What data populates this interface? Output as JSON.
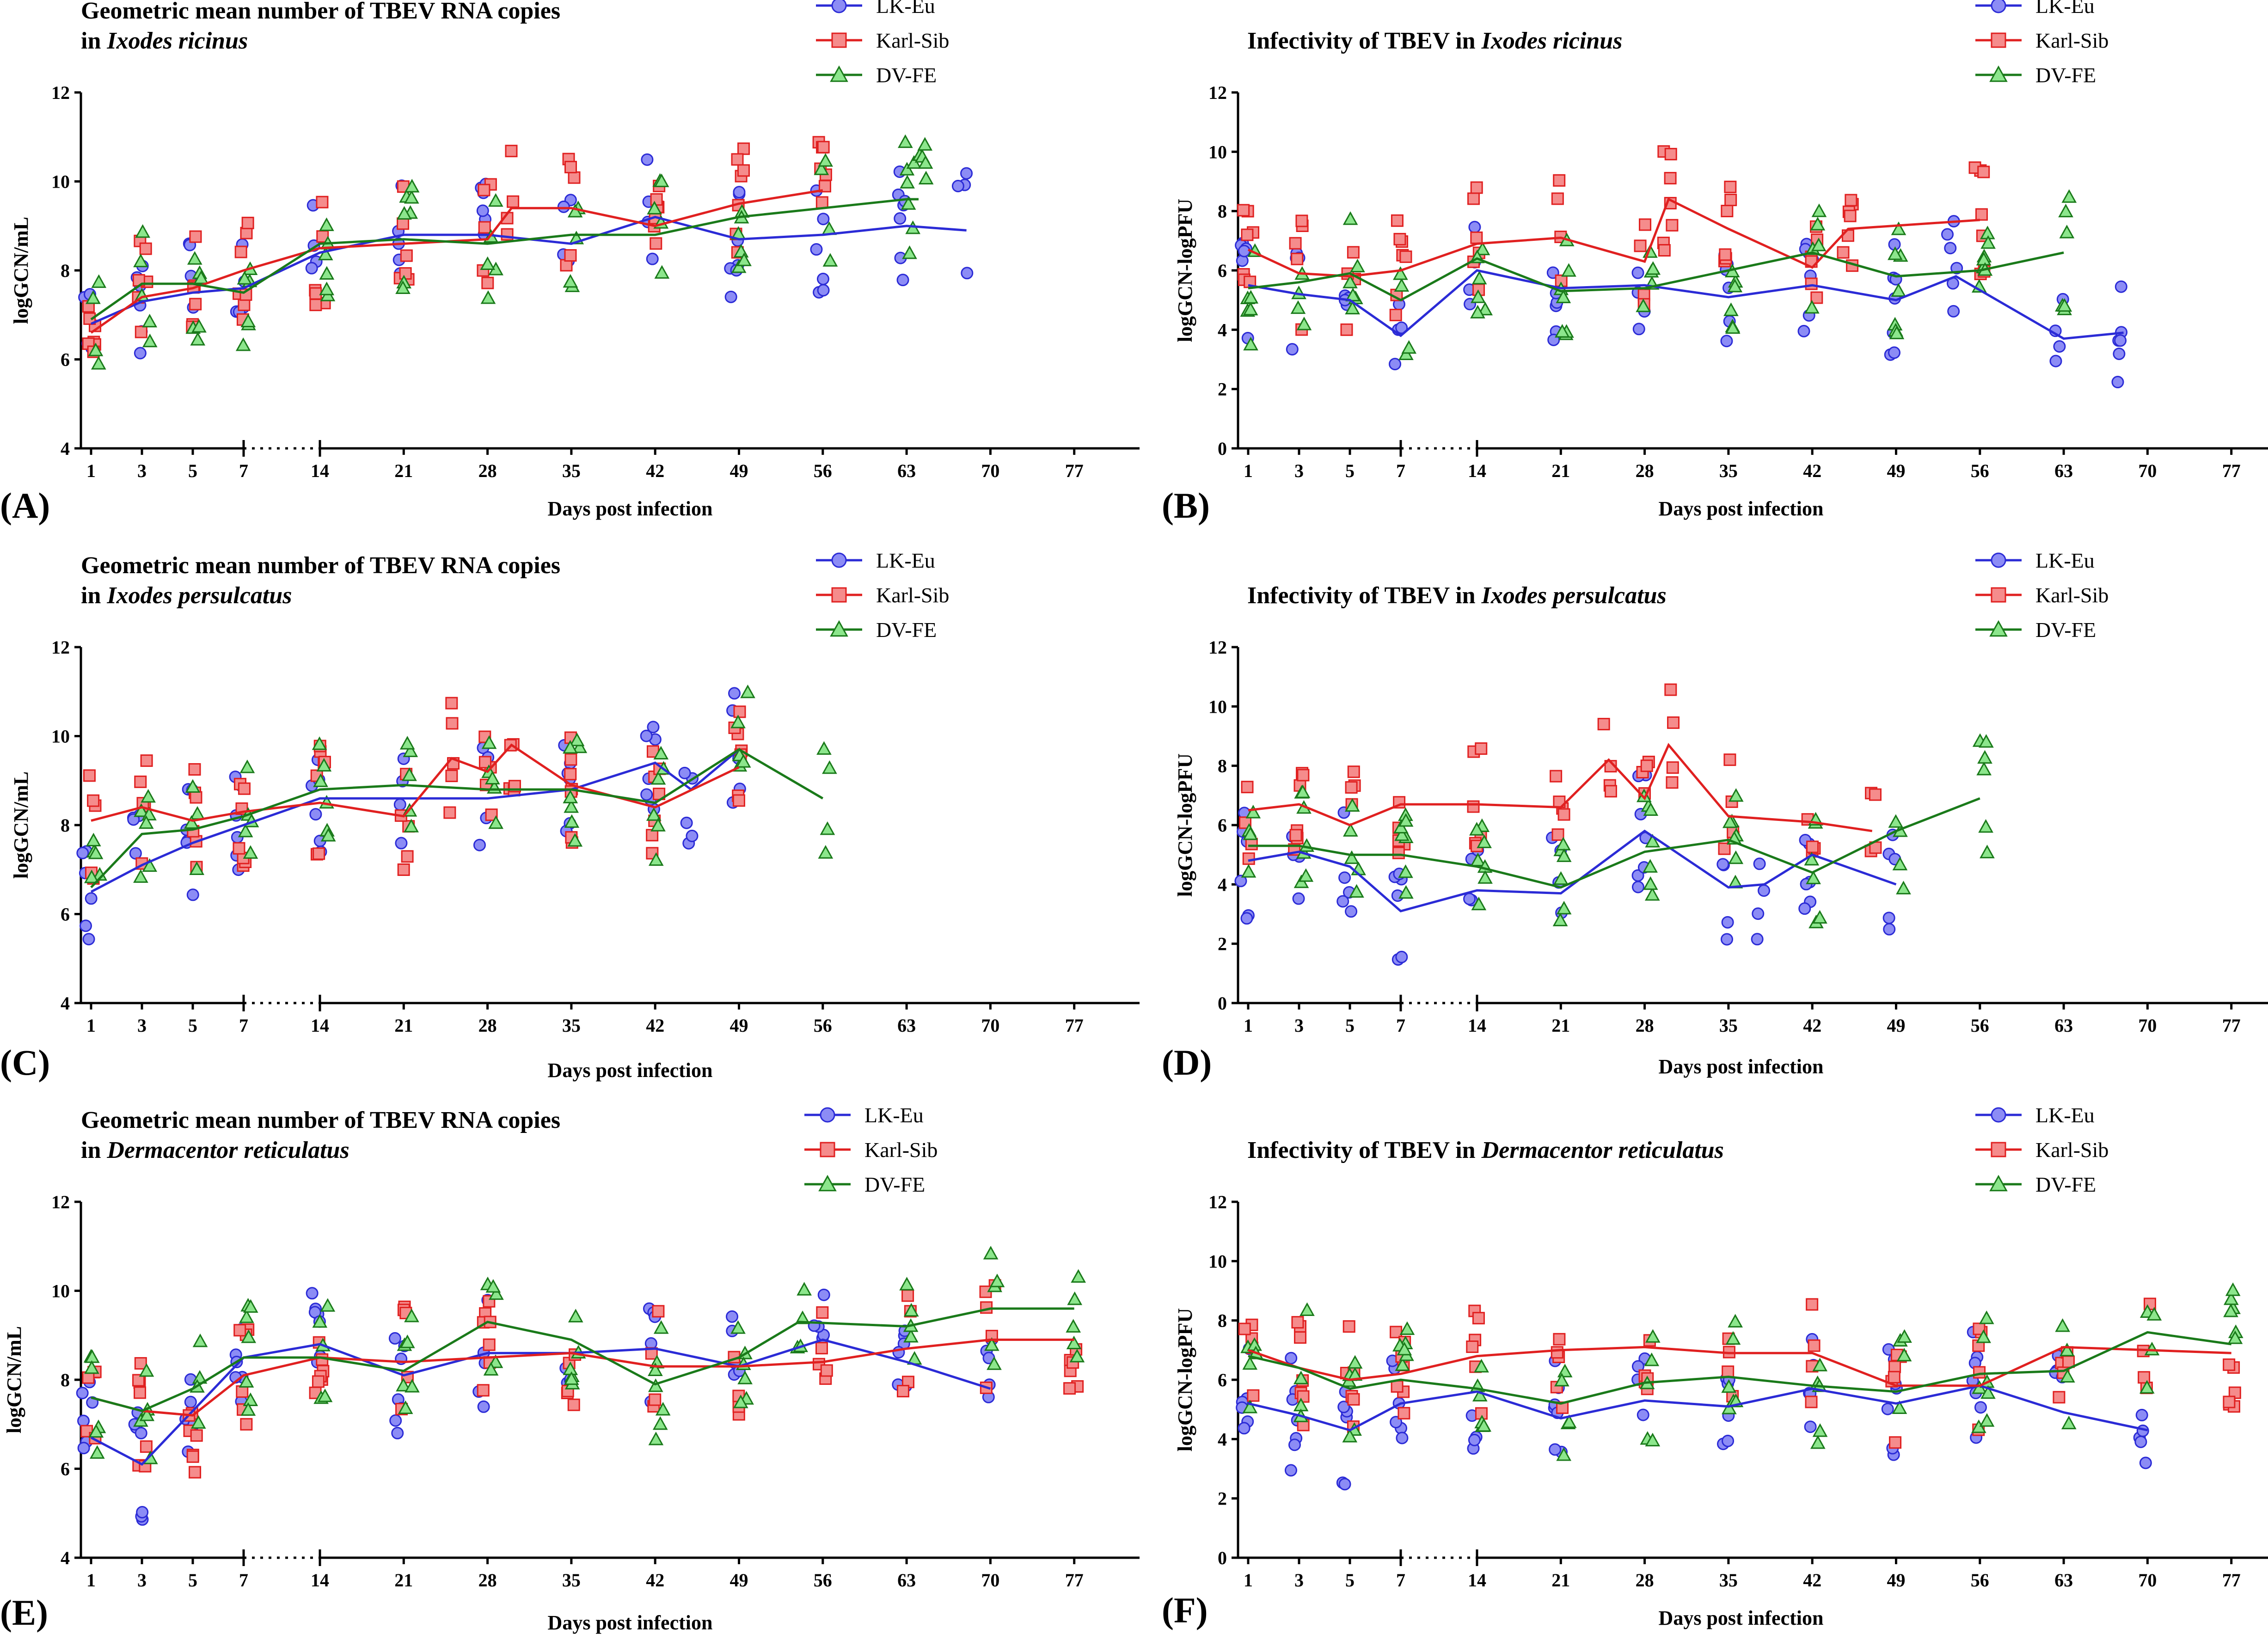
{
  "colors": {
    "LK-Eu": "#2b2bd6",
    "Karl-Sib": "#e02020",
    "DV-FE": "#1a7a1a",
    "LK-Eu_fill": "#8c8cf5",
    "Karl-Sib_fill": "#f58c8c",
    "DV-FE_fill": "#8ce68c"
  },
  "shared": {
    "xlabel": "Days post infection",
    "legend": [
      "LK-Eu",
      "Karl-Sib",
      "DV-FE"
    ],
    "xticks": [
      1,
      3,
      5,
      7,
      14,
      21,
      28,
      35,
      42,
      49,
      56,
      63,
      70,
      77
    ],
    "axis_break": "7 to 14 (dotted)"
  },
  "chart_data": [
    {
      "panel": "(A)",
      "type": "line",
      "title_prefix": "Geometric mean number of TBEV RNA copies",
      "title_line2_prefix": "in ",
      "species": "Ixodes ricinus",
      "ylabel": "logGCN/mL",
      "ylim": [
        4,
        12
      ],
      "yticks": [
        4,
        6,
        8,
        10,
        12
      ],
      "legend_position": "top-right",
      "series": [
        {
          "name": "LK-Eu",
          "x": [
            1,
            3,
            5,
            7,
            14,
            21,
            28,
            35,
            42,
            49,
            56,
            63,
            68
          ],
          "y": [
            6.8,
            7.3,
            7.5,
            7.6,
            8.4,
            8.8,
            8.8,
            8.6,
            9.2,
            8.7,
            8.8,
            9.0,
            8.9
          ]
        },
        {
          "name": "Karl-Sib",
          "x": [
            1,
            3,
            5,
            7,
            14,
            21,
            28,
            30,
            35,
            42,
            49,
            56
          ],
          "y": [
            6.6,
            7.4,
            7.6,
            8.0,
            8.5,
            8.6,
            8.7,
            9.4,
            9.4,
            9.0,
            9.5,
            9.8
          ]
        },
        {
          "name": "DV-FE",
          "x": [
            1,
            3,
            5,
            7,
            14,
            21,
            28,
            35,
            42,
            49,
            56,
            63,
            64
          ],
          "y": [
            6.9,
            7.7,
            7.7,
            7.5,
            8.6,
            8.7,
            8.6,
            8.8,
            8.8,
            9.2,
            9.4,
            9.6,
            9.6
          ]
        }
      ]
    },
    {
      "panel": "(B)",
      "type": "line",
      "title_prefix": "Infectivity of TBEV in ",
      "title_line2_prefix": "",
      "species": "Ixodes ricinus",
      "ylabel": "logGCN-logPFU",
      "ylim": [
        0,
        12
      ],
      "yticks": [
        0,
        2,
        4,
        6,
        8,
        10,
        12
      ],
      "legend_position": "top-right",
      "series": [
        {
          "name": "LK-Eu",
          "x": [
            1,
            3,
            5,
            7,
            14,
            21,
            28,
            35,
            42,
            49,
            54,
            63,
            68
          ],
          "y": [
            5.5,
            5.2,
            5.0,
            3.8,
            6.0,
            5.4,
            5.5,
            5.1,
            5.5,
            5.0,
            5.8,
            3.7,
            3.9
          ]
        },
        {
          "name": "Karl-Sib",
          "x": [
            1,
            3,
            5,
            7,
            14,
            21,
            28,
            30,
            35,
            42,
            45,
            56
          ],
          "y": [
            6.7,
            5.9,
            5.8,
            6.0,
            6.9,
            7.1,
            6.3,
            8.4,
            7.4,
            6.1,
            7.4,
            7.7
          ]
        },
        {
          "name": "DV-FE",
          "x": [
            1,
            3,
            5,
            7,
            14,
            21,
            28,
            35,
            42,
            49,
            56,
            63
          ],
          "y": [
            5.4,
            5.6,
            5.9,
            5.0,
            6.4,
            5.3,
            5.4,
            6.0,
            6.6,
            5.8,
            6.0,
            6.6
          ]
        }
      ]
    },
    {
      "panel": "(C)",
      "type": "line",
      "title_prefix": "Geometric mean number of TBEV RNA copies",
      "title_line2_prefix": "in ",
      "species": "Ixodes persulcatus",
      "ylabel": "logGCN/mL",
      "ylim": [
        4,
        12
      ],
      "yticks": [
        4,
        6,
        8,
        10,
        12
      ],
      "legend_position": "top-right",
      "series": [
        {
          "name": "LK-Eu",
          "x": [
            1,
            3,
            5,
            7,
            14,
            21,
            28,
            35,
            42,
            45,
            49
          ],
          "y": [
            6.5,
            7.1,
            7.6,
            8.0,
            8.6,
            8.6,
            8.6,
            8.8,
            9.4,
            8.8,
            9.7
          ]
        },
        {
          "name": "Karl-Sib",
          "x": [
            1,
            3,
            5,
            7,
            14,
            21,
            25,
            28,
            30,
            35,
            42,
            49
          ],
          "y": [
            8.1,
            8.4,
            8.1,
            8.3,
            8.5,
            8.2,
            9.5,
            9.2,
            9.8,
            8.9,
            8.4,
            9.3
          ]
        },
        {
          "name": "DV-FE",
          "x": [
            1,
            3,
            5,
            7,
            14,
            21,
            28,
            35,
            42,
            49,
            56
          ],
          "y": [
            6.6,
            7.8,
            7.9,
            8.2,
            8.8,
            8.9,
            8.8,
            8.8,
            8.5,
            9.7,
            8.6
          ]
        }
      ]
    },
    {
      "panel": "(D)",
      "type": "line",
      "title_prefix": "Infectivity of TBEV in ",
      "title_line2_prefix": "",
      "species": "Ixodes persulcatus",
      "ylabel": "logGCN-logPFU",
      "ylim": [
        0,
        12
      ],
      "yticks": [
        0,
        2,
        4,
        6,
        8,
        10,
        12
      ],
      "legend_position": "top-right",
      "series": [
        {
          "name": "LK-Eu",
          "x": [
            1,
            3,
            5,
            7,
            14,
            21,
            28,
            35,
            38,
            42,
            49
          ],
          "y": [
            4.8,
            5.1,
            4.6,
            3.1,
            3.8,
            3.7,
            5.8,
            3.9,
            4.0,
            5.0,
            4.0
          ]
        },
        {
          "name": "Karl-Sib",
          "x": [
            1,
            3,
            5,
            7,
            14,
            21,
            25,
            28,
            30,
            35,
            42,
            47
          ],
          "y": [
            6.5,
            6.7,
            6.0,
            6.7,
            6.7,
            6.6,
            8.2,
            6.9,
            8.7,
            6.3,
            6.1,
            5.8
          ]
        },
        {
          "name": "DV-FE",
          "x": [
            1,
            3,
            5,
            7,
            14,
            21,
            28,
            35,
            42,
            49,
            56
          ],
          "y": [
            5.3,
            5.3,
            5.0,
            5.0,
            4.6,
            3.9,
            5.1,
            5.5,
            4.4,
            5.8,
            6.9
          ]
        }
      ]
    },
    {
      "panel": "(E)",
      "type": "line",
      "title_prefix": "Geometric mean number of TBEV RNA copies",
      "title_line2_prefix": "in ",
      "species": "Dermacentor reticulatus",
      "ylabel": "logGCN/mL",
      "ylim": [
        4,
        12
      ],
      "yticks": [
        4,
        6,
        8,
        10,
        12
      ],
      "legend_position": "top-right",
      "series": [
        {
          "name": "LK-Eu",
          "x": [
            1,
            3,
            5,
            7,
            14,
            21,
            28,
            35,
            42,
            49,
            56,
            63,
            70
          ],
          "y": [
            6.7,
            6.1,
            7.3,
            8.5,
            8.8,
            8.1,
            8.6,
            8.6,
            8.7,
            8.3,
            8.9,
            8.4,
            7.8
          ]
        },
        {
          "name": "Karl-Sib",
          "x": [
            1,
            3,
            5,
            7,
            14,
            21,
            28,
            35,
            42,
            49,
            56,
            63,
            70,
            77
          ],
          "y": [
            7.6,
            7.3,
            7.2,
            8.1,
            8.5,
            8.4,
            8.5,
            8.6,
            8.3,
            8.3,
            8.4,
            8.7,
            8.9,
            8.9
          ]
        },
        {
          "name": "DV-FE",
          "x": [
            1,
            3,
            5,
            7,
            14,
            21,
            28,
            35,
            42,
            49,
            54,
            63,
            70,
            77
          ],
          "y": [
            7.6,
            7.3,
            7.8,
            8.5,
            8.5,
            8.2,
            9.3,
            8.9,
            7.9,
            8.5,
            9.3,
            9.2,
            9.6,
            9.6
          ]
        }
      ]
    },
    {
      "panel": "(F)",
      "type": "line",
      "title_prefix": "Infectivity of TBEV in ",
      "title_line2_prefix": "",
      "species": "Dermacentor reticulatus",
      "ylabel": "logGCN-logPFU",
      "ylim": [
        0,
        12
      ],
      "yticks": [
        0,
        2,
        4,
        6,
        8,
        10,
        12
      ],
      "legend_position": "top-right",
      "series": [
        {
          "name": "LK-Eu",
          "x": [
            1,
            3,
            5,
            7,
            14,
            21,
            28,
            35,
            42,
            49,
            56,
            63,
            70
          ],
          "y": [
            5.2,
            4.8,
            4.3,
            5.2,
            5.6,
            4.7,
            5.3,
            5.1,
            5.7,
            5.2,
            5.8,
            4.9,
            4.3
          ]
        },
        {
          "name": "Karl-Sib",
          "x": [
            1,
            3,
            5,
            7,
            14,
            21,
            28,
            35,
            42,
            49,
            56,
            63,
            70,
            77
          ],
          "y": [
            7.0,
            6.4,
            6.0,
            6.2,
            6.8,
            7.0,
            7.1,
            6.9,
            6.9,
            5.8,
            5.8,
            7.1,
            7.0,
            6.9
          ]
        },
        {
          "name": "DV-FE",
          "x": [
            1,
            3,
            5,
            7,
            14,
            21,
            28,
            35,
            42,
            49,
            56,
            63,
            70,
            77
          ],
          "y": [
            6.8,
            6.4,
            5.7,
            6.0,
            5.7,
            5.2,
            5.9,
            6.1,
            5.8,
            5.6,
            6.2,
            6.3,
            7.6,
            7.2
          ]
        }
      ]
    }
  ]
}
